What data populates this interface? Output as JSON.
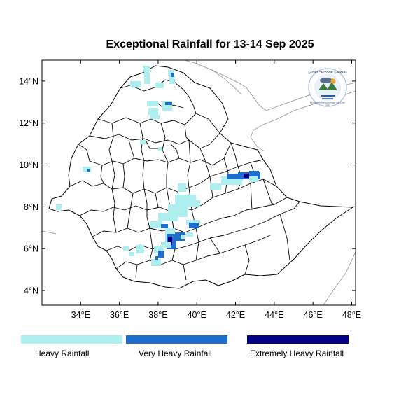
{
  "title": "Exceptional Rainfall for 13-14 Sep 2025",
  "map": {
    "lon_range": [
      32.0,
      48.2
    ],
    "lat_range": [
      3.3,
      15.0
    ],
    "lat_ticks": [
      {
        "value": 4,
        "label": "4°N"
      },
      {
        "value": 6,
        "label": "6°N"
      },
      {
        "value": 8,
        "label": "8°N"
      },
      {
        "value": 10,
        "label": "10°N"
      },
      {
        "value": 12,
        "label": "12°N"
      },
      {
        "value": 14,
        "label": "14°N"
      }
    ],
    "lon_ticks": [
      {
        "value": 34,
        "label": "34°E"
      },
      {
        "value": 36,
        "label": "36°E"
      },
      {
        "value": 38,
        "label": "38°E"
      },
      {
        "value": 40,
        "label": "40°E"
      },
      {
        "value": 42,
        "label": "42°E"
      },
      {
        "value": 44,
        "label": "44°E"
      },
      {
        "value": 46,
        "label": "46°E"
      },
      {
        "value": 48,
        "label": "48°E"
      }
    ],
    "logo": {
      "icon": "ethiopian-meteorology-institute-logo",
      "text_top": "ኢትዮጵያ ሜትዮሮሎጂ ኢንስቲትዩት",
      "text_bottom": "Ethiopian Meteorology Institute",
      "caption": "EMI"
    },
    "colors": {
      "heavy": "#aeeeee",
      "very_heavy": "#1e6fcc",
      "extreme": "#000080",
      "border": "#000000",
      "neighbor": "#a6a6a6"
    }
  },
  "legend": [
    {
      "label": "Heavy Rainfall",
      "color": "#aeeeee"
    },
    {
      "label": "Very Heavy Rainfall",
      "color": "#1e6fcc"
    },
    {
      "label": "Extremely Heavy Rainfall",
      "color": "#000080"
    }
  ]
}
